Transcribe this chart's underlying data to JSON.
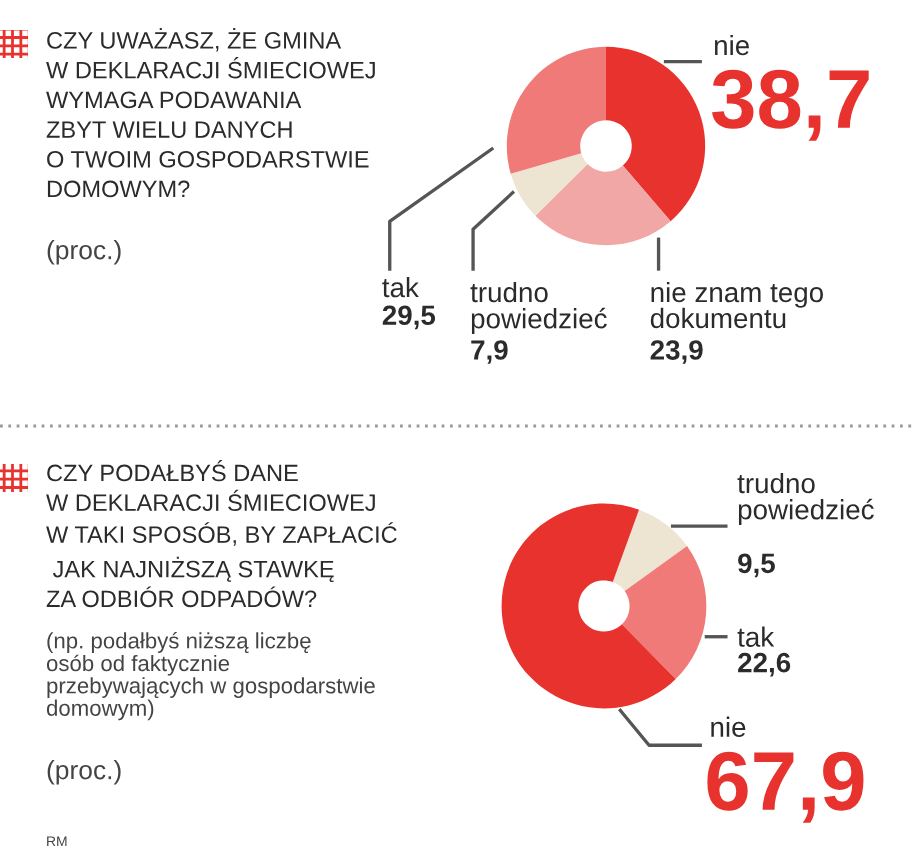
{
  "chart_data": [
    {
      "type": "donut",
      "title": "CZY UWAŻASZ, ŻE GMINA\nW DEKLARACJI ŚMIECIOWEJ\nWYMAGA PODAWANIA\nZBYT WIELU DANYCH\nO TWOIM GOSPODARSTWIE\nDOMOWYM?",
      "categories": [
        "nie",
        "nie znam tego\ndokumentu",
        "trudno\npowiedzieć",
        "tak"
      ],
      "values": [
        38.7,
        23.9,
        7.9,
        29.5
      ],
      "value_labels": [
        "38,7",
        "23,9",
        "7,9",
        "29,5"
      ],
      "colors": [
        "#e8322e",
        "#f1a7a5",
        "#ede4d2",
        "#f07a78"
      ],
      "annotations": [
        "(proc.)"
      ]
    },
    {
      "type": "donut",
      "title": "CZY PODAŁBYŚ DANE\nW DEKLARACJI ŚMIECIOWEJ\nW TAKI SPOSÓB, BY ZAPŁACIĆ\n JAK NAJNIŻSZĄ STAWKĘ\nZA ODBIÓR ODPADÓW?",
      "subtitle": "(np. podałbyś niższą liczbę\nosób od faktycznie\nprzebywających w gospodarstwie\ndomowym)",
      "categories": [
        "trudno\npowiedzieć",
        "tak",
        "nie"
      ],
      "values": [
        9.5,
        22.6,
        67.9
      ],
      "value_labels": [
        "9,5",
        "22,6",
        "67,9"
      ],
      "colors": [
        "#ede4d2",
        "#f07a78",
        "#e8322e"
      ],
      "annotations": [
        "(proc.)",
        "RM"
      ]
    }
  ]
}
